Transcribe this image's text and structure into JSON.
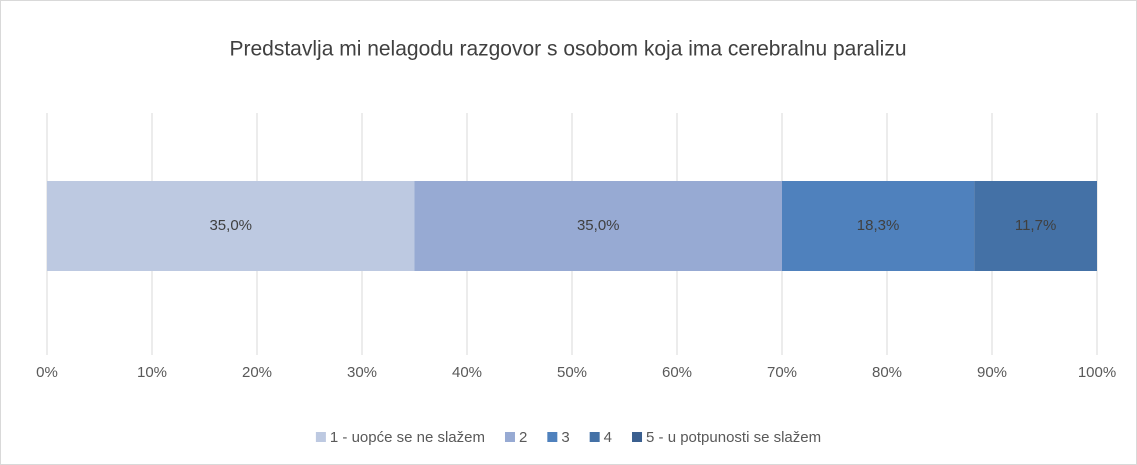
{
  "chart_data": {
    "type": "stacked-bar-horizontal",
    "title": "Predstavlja mi nelagodu razgovor s osobom koja ima cerebralnu paralizu",
    "categories": [
      null
    ],
    "series": [
      {
        "name": "1 - uopće se ne slažem",
        "color": "#bdc9e1",
        "values": [
          35.0
        ],
        "value_labels": [
          "35,0%"
        ]
      },
      {
        "name": "2",
        "color": "#97aad3",
        "values": [
          35.0
        ],
        "value_labels": [
          "35,0%"
        ]
      },
      {
        "name": "3",
        "color": "#4f81bd",
        "values": [
          18.3
        ],
        "value_labels": [
          "18,3%"
        ]
      },
      {
        "name": "4",
        "color": "#4471a6",
        "values": [
          11.7
        ],
        "value_labels": [
          "11,7%"
        ]
      },
      {
        "name": "5 - u potpunosti se slažem",
        "color": "#3a5f8f",
        "values": [
          0
        ]
      }
    ],
    "xlim": [
      0,
      100
    ],
    "xticks": [
      {
        "value": 0,
        "label": "0%"
      },
      {
        "value": 10,
        "label": "10%"
      },
      {
        "value": 20,
        "label": "20%"
      },
      {
        "value": 30,
        "label": "30%"
      },
      {
        "value": 40,
        "label": "40%"
      },
      {
        "value": 50,
        "label": "50%"
      },
      {
        "value": 60,
        "label": "60%"
      },
      {
        "value": 70,
        "label": "70%"
      },
      {
        "value": 80,
        "label": "80%"
      },
      {
        "value": 90,
        "label": "90%"
      },
      {
        "value": 100,
        "label": "100%"
      }
    ],
    "grid": true,
    "legend": "bottom"
  }
}
